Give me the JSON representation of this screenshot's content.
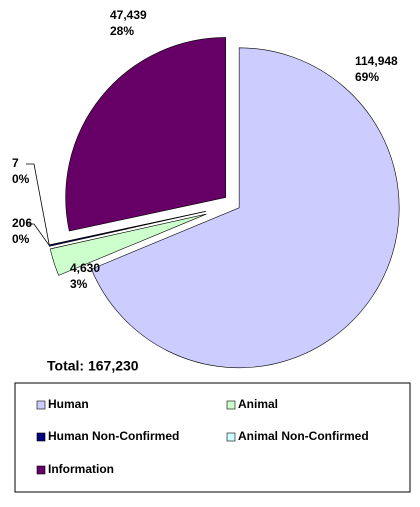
{
  "chart_data": {
    "type": "pie",
    "categories": [
      "Human",
      "Animal",
      "Human Non-Confirmed",
      "Animal Non-Confirmed",
      "Information"
    ],
    "values": [
      114948,
      4630,
      206,
      7,
      47439
    ],
    "value_labels": [
      "114,948",
      "4,630",
      "206",
      "7",
      "47,439"
    ],
    "percent_labels": [
      "69%",
      "3%",
      "0%",
      "0%",
      "28%"
    ],
    "colors": [
      "#ccccff",
      "#ccffcc",
      "#000080",
      "#ccffff",
      "#660066"
    ],
    "total_label": "Total: 167,230",
    "legend": "bottom"
  }
}
